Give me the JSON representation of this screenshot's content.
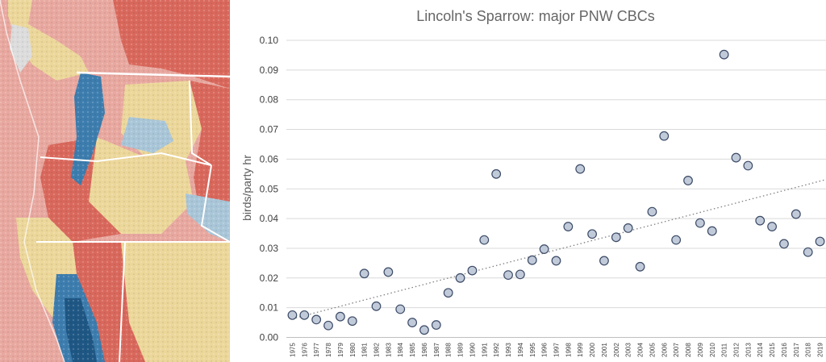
{
  "map": {
    "colors": {
      "red": "#d9685c",
      "pink": "#e8a8a0",
      "tan": "#ecd79a",
      "lightblue": "#a9c6d8",
      "blue": "#3d7dae",
      "darkblue": "#1f5784",
      "gray": "#dcdcdc",
      "border": "#ffffff"
    }
  },
  "chart_data": {
    "type": "scatter",
    "title": "Lincoln's Sparrow: major PNW CBCs",
    "xlabel": "",
    "ylabel": "birds/party hr",
    "ylim": [
      0,
      0.1
    ],
    "yticks": [
      "0.00",
      "0.01",
      "0.02",
      "0.03",
      "0.04",
      "0.05",
      "0.06",
      "0.07",
      "0.08",
      "0.09",
      "0.10"
    ],
    "x": [
      1975,
      1976,
      1977,
      1978,
      1979,
      1980,
      1981,
      1982,
      1983,
      1984,
      1985,
      1986,
      1987,
      1988,
      1989,
      1990,
      1991,
      1992,
      1993,
      1994,
      1995,
      1996,
      1997,
      1998,
      1999,
      2000,
      2001,
      2002,
      2003,
      2004,
      2005,
      2006,
      2007,
      2008,
      2009,
      2010,
      2011,
      2012,
      2013,
      2014,
      2015,
      2016,
      2017,
      2018,
      2019
    ],
    "y": [
      0.0075,
      0.0075,
      0.006,
      0.004,
      0.007,
      0.0055,
      0.0215,
      0.0105,
      0.022,
      0.0095,
      0.005,
      0.0025,
      0.0042,
      0.015,
      0.02,
      0.0225,
      0.0328,
      0.055,
      0.021,
      0.0212,
      0.026,
      0.0297,
      0.0258,
      0.0373,
      0.0567,
      0.0348,
      0.0258,
      0.0337,
      0.0368,
      0.0238,
      0.0423,
      0.0678,
      0.0328,
      0.0528,
      0.0385,
      0.0358,
      0.0952,
      0.0605,
      0.0578,
      0.0393,
      0.0373,
      0.0315,
      0.0415,
      0.0287,
      0.0323
    ],
    "trendline": {
      "style": "dotted",
      "color": "#808080"
    },
    "marker": {
      "fill": "#c1cad9",
      "stroke": "#3b4a66"
    },
    "grid": true
  }
}
